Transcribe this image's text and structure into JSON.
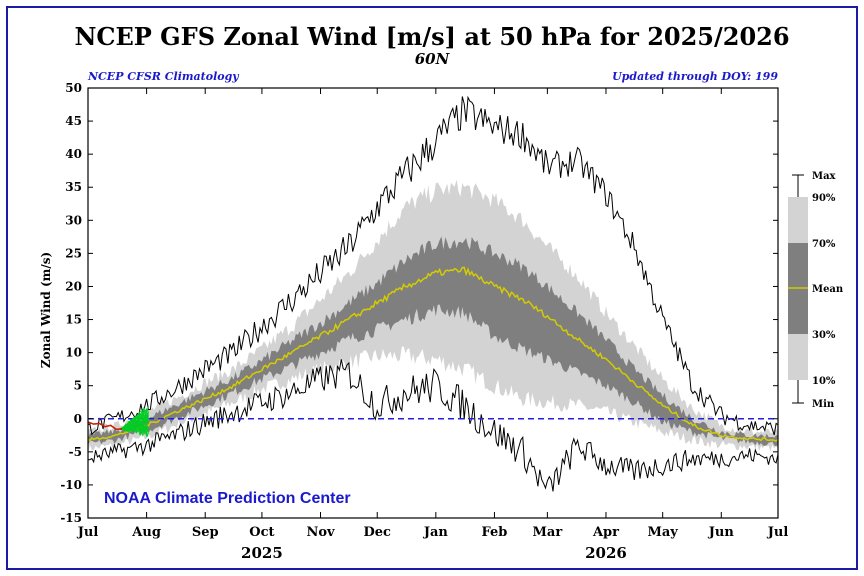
{
  "chart_data": {
    "type": "area",
    "title": "NCEP GFS Zonal Wind [m/s] at 50 hPa for 2025/2026",
    "subtitle": "60N",
    "left_note": "NCEP CFSR Climatology",
    "right_note": "Updated through DOY: 199",
    "ylabel": "Zonal Wind (m/s)",
    "ylim": [
      -15,
      50
    ],
    "yticks": [
      -15,
      -10,
      -5,
      0,
      5,
      10,
      15,
      20,
      25,
      30,
      35,
      40,
      45,
      50
    ],
    "xlim": [
      0,
      365
    ],
    "month_ticks": [
      {
        "label": "Jul",
        "day": 0
      },
      {
        "label": "Aug",
        "day": 31
      },
      {
        "label": "Sep",
        "day": 62
      },
      {
        "label": "Oct",
        "day": 92
      },
      {
        "label": "Nov",
        "day": 123
      },
      {
        "label": "Dec",
        "day": 153
      },
      {
        "label": "Jan",
        "day": 184
      },
      {
        "label": "Feb",
        "day": 215
      },
      {
        "label": "Mar",
        "day": 243
      },
      {
        "label": "Apr",
        "day": 274
      },
      {
        "label": "May",
        "day": 304
      },
      {
        "label": "Jun",
        "day": 335
      },
      {
        "label": "Jul",
        "day": 365
      }
    ],
    "years": [
      {
        "label": "2025",
        "day": 92
      },
      {
        "label": "2026",
        "day": 274
      }
    ],
    "credit": "NOAA Climate Prediction Center",
    "zero_line": 0,
    "climatology": {
      "day": [
        0,
        15,
        31,
        46,
        62,
        77,
        92,
        108,
        123,
        138,
        153,
        168,
        184,
        199,
        215,
        230,
        243,
        259,
        274,
        289,
        304,
        320,
        335,
        350,
        365
      ],
      "mean": [
        -3.2,
        -2.5,
        -1.0,
        1.0,
        3.0,
        5.0,
        7.5,
        10.0,
        12.5,
        15.0,
        17.5,
        20.0,
        22.0,
        22.5,
        20.0,
        18.0,
        15.5,
        12.0,
        9.0,
        5.5,
        2.0,
        -1.0,
        -2.5,
        -3.0,
        -3.2
      ],
      "p30": [
        -3.8,
        -3.2,
        -1.8,
        0.0,
        2.0,
        4.0,
        6.0,
        8.0,
        10.0,
        12.0,
        13.5,
        15.0,
        16.5,
        16.0,
        12.5,
        10.5,
        9.0,
        7.0,
        5.0,
        2.5,
        -0.5,
        -2.0,
        -3.0,
        -3.5,
        -3.8
      ],
      "p70": [
        -2.6,
        -1.8,
        0.0,
        2.0,
        4.2,
        6.2,
        8.8,
        11.8,
        14.5,
        17.5,
        20.5,
        24.0,
        26.5,
        27.0,
        25.0,
        23.0,
        20.0,
        16.0,
        12.0,
        7.5,
        3.5,
        0.0,
        -2.0,
        -2.5,
        -2.6
      ],
      "p10": [
        -4.5,
        -4.0,
        -2.8,
        -1.0,
        0.8,
        2.5,
        4.5,
        6.0,
        7.5,
        8.5,
        9.5,
        9.5,
        9.0,
        7.5,
        5.0,
        3.0,
        2.5,
        2.0,
        1.0,
        -0.5,
        -2.0,
        -3.2,
        -4.0,
        -4.2,
        -4.5
      ],
      "p90": [
        -2.0,
        -1.0,
        1.0,
        3.0,
        5.5,
        7.5,
        10.5,
        14.0,
        18.0,
        22.0,
        27.0,
        32.0,
        34.5,
        35.0,
        33.0,
        30.0,
        26.0,
        21.5,
        16.0,
        11.0,
        6.0,
        1.5,
        -1.0,
        -2.0,
        -2.0
      ],
      "min": [
        -6.0,
        -5.0,
        -4.0,
        -2.5,
        -0.5,
        1.0,
        2.5,
        4.0,
        6.0,
        7.0,
        2.0,
        4.0,
        5.0,
        2.0,
        -2.0,
        -5.0,
        -11.0,
        -4.0,
        -7.0,
        -8.0,
        -7.0,
        -6.0,
        -6.0,
        -5.5,
        -6.0
      ],
      "max": [
        -1.5,
        0.0,
        2.0,
        4.5,
        7.5,
        10.0,
        14.0,
        18.0,
        22.0,
        26.0,
        32.0,
        37.0,
        42.0,
        46.5,
        44.0,
        43.0,
        38.0,
        39.0,
        34.0,
        26.0,
        15.0,
        5.0,
        0.5,
        -1.0,
        -1.5
      ]
    },
    "observed_2025": {
      "day": [
        0,
        3,
        6,
        9,
        12,
        15,
        18,
        21,
        24,
        27,
        30,
        33,
        36,
        39
      ],
      "value": [
        -0.5,
        -0.8,
        -0.7,
        -1.2,
        -1.0,
        -1.6,
        -1.5,
        -2.0,
        -1.4,
        -1.1,
        -0.8,
        -0.3,
        -0.4,
        0.0
      ]
    },
    "forecast_members": {
      "start_day": 17,
      "end_day": 32,
      "start_value": -1.6,
      "end_range": [
        -2.3,
        1.8
      ],
      "count": 20
    },
    "legend": {
      "labels": [
        "Max",
        "90%",
        "70%",
        "Mean",
        "30%",
        "10%",
        "Min"
      ]
    },
    "colors": {
      "frame": "#1a1aaa",
      "band_outer": "#d3d3d3",
      "band_inner": "#7f7f7f",
      "mean": "#d4cc00",
      "minmax": "#000000",
      "zero_line": "#2222dd",
      "observed": "#cc2200",
      "forecast": "#00cc22",
      "credit": "#1a1acc"
    }
  }
}
